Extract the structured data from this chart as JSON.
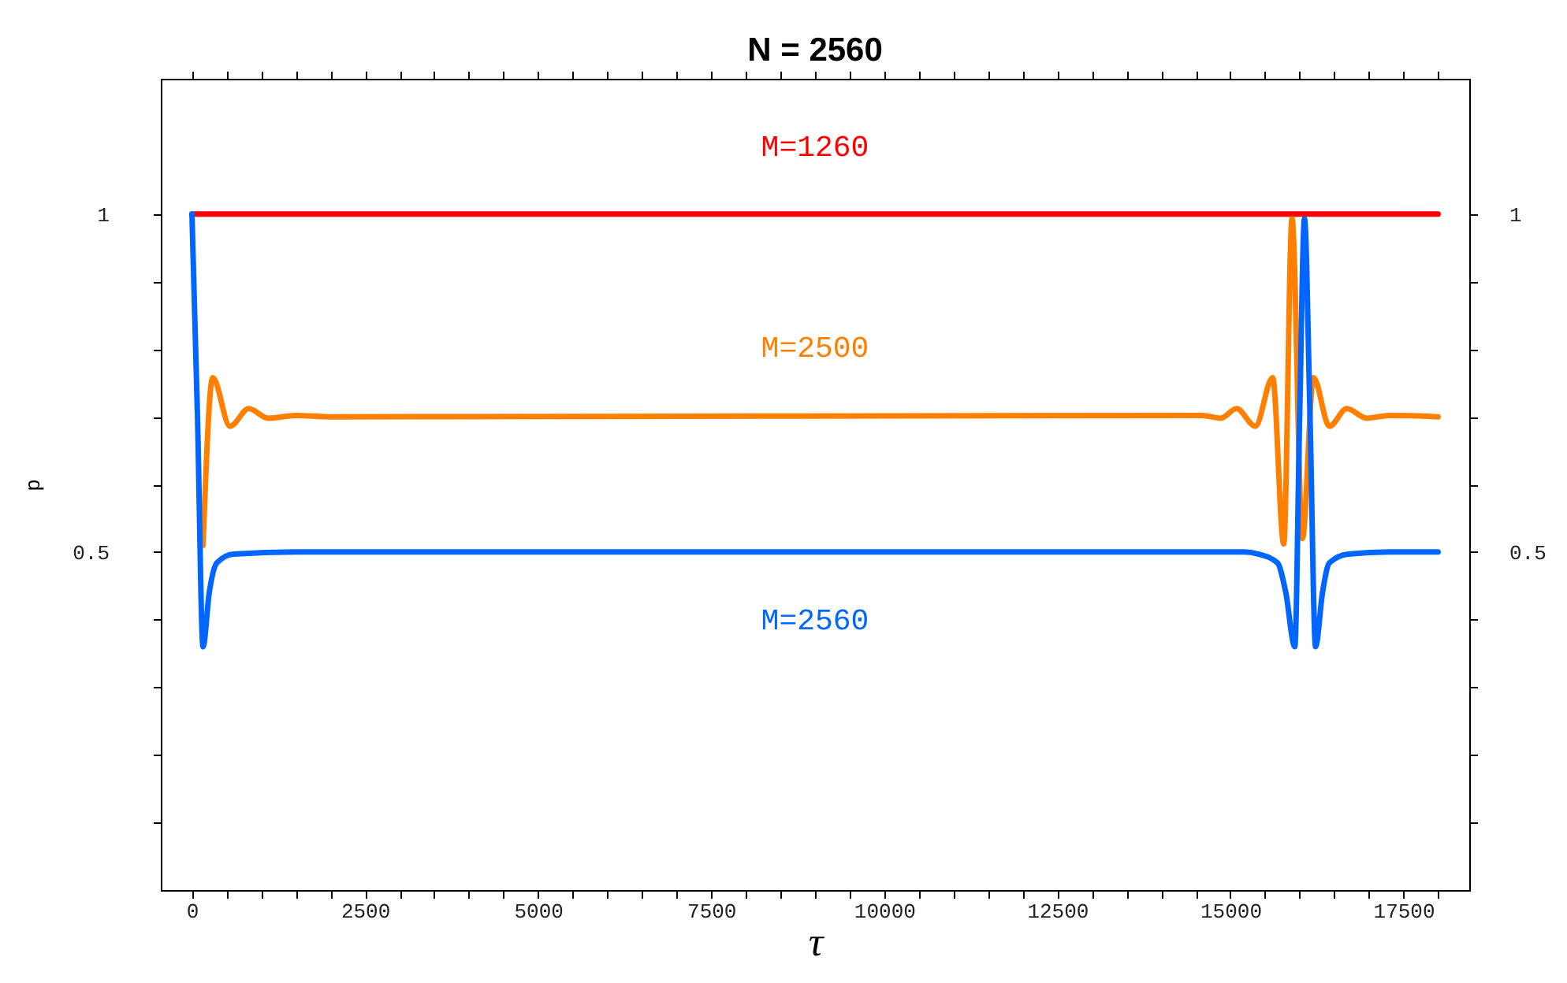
{
  "chart_data": {
    "type": "line",
    "title": "N = 2560",
    "xlabel": "τ",
    "ylabel": "p",
    "xlim": [
      -450,
      18450
    ],
    "xticks": [
      0,
      {
        "value": 500,
        "label": null
      },
      {
        "value": 1000,
        "label": null
      },
      {
        "value": 1500,
        "label": null
      },
      {
        "value": 2000,
        "label": null
      },
      2500,
      {
        "value": 3000,
        "label": null
      },
      {
        "value": 3500,
        "label": null
      },
      {
        "value": 4000,
        "label": null
      },
      {
        "value": 4500,
        "label": null
      },
      5000,
      {
        "value": 5500,
        "label": null
      },
      {
        "value": 6000,
        "label": null
      },
      {
        "value": 6500,
        "label": null
      },
      {
        "value": 7000,
        "label": null
      },
      7500,
      {
        "value": 8000,
        "label": null
      },
      {
        "value": 8500,
        "label": null
      },
      {
        "value": 9000,
        "label": null
      },
      {
        "value": 9500,
        "label": null
      },
      10000,
      {
        "value": 10500,
        "label": null
      },
      {
        "value": 11000,
        "label": null
      },
      {
        "value": 11500,
        "label": null
      },
      {
        "value": 12000,
        "label": null
      },
      12500,
      {
        "value": 13000,
        "label": null
      },
      {
        "value": 13500,
        "label": null
      },
      {
        "value": 14000,
        "label": null
      },
      {
        "value": 14500,
        "label": null
      },
      15000,
      {
        "value": 15500,
        "label": null
      },
      {
        "value": 16000,
        "label": null
      },
      {
        "value": 16500,
        "label": null
      },
      {
        "value": 17000,
        "label": null
      },
      17500,
      {
        "value": 18000,
        "label": null
      }
    ],
    "ylim": [
      0,
      1.2
    ],
    "yticks": [
      {
        "value": 0.1,
        "label": null
      },
      {
        "value": 0.2,
        "label": null
      },
      {
        "value": 0.3,
        "label": null
      },
      {
        "value": 0.4,
        "label": null
      },
      0.5,
      {
        "value": 0.6,
        "label": null
      },
      {
        "value": 0.7,
        "label": null
      },
      {
        "value": 0.8,
        "label": null
      },
      {
        "value": 0.9,
        "label": null
      },
      1
    ],
    "y2lim": [
      0,
      1.2
    ],
    "y2ticks": [
      {
        "value": 0.1,
        "label": null
      },
      {
        "value": 0.2,
        "label": null
      },
      {
        "value": 0.3,
        "label": null
      },
      {
        "value": 0.4,
        "label": null
      },
      0.5,
      {
        "value": 0.6,
        "label": null
      },
      {
        "value": 0.7,
        "label": null
      },
      {
        "value": 0.8,
        "label": null
      },
      {
        "value": 0.9,
        "label": null
      },
      1
    ],
    "grid": false,
    "marker": "none",
    "line_style": "solid",
    "series": [
      {
        "name": "M=1260",
        "color": "#ff0000",
        "x": [
          0,
          18000
        ],
        "values": [
          1,
          1
        ]
      },
      {
        "name": "M=2500",
        "color": "#ff8000",
        "x": [
          160,
          300,
          550,
          820,
          1100,
          1500,
          2000,
          14590,
          14860,
          15090,
          15360,
          15610,
          15770,
          15890,
          16040,
          16200,
          16430,
          16680,
          16970,
          17300,
          18000
        ],
        "values": [
          0.51,
          0.758,
          0.686,
          0.712,
          0.698,
          0.702,
          0.7,
          0.702,
          0.698,
          0.712,
          0.686,
          0.758,
          0.512,
          0.993,
          0.52,
          0.758,
          0.686,
          0.712,
          0.698,
          0.702,
          0.7
        ]
      },
      {
        "name": "M=2560",
        "color": "#0066ff",
        "x": [
          0,
          80,
          160,
          250,
          360,
          600,
          1500,
          15200,
          15400,
          15680,
          15800,
          15930,
          16000,
          16070,
          16150,
          16230,
          16330,
          16430,
          16700,
          17300,
          18000
        ],
        "values": [
          1,
          0.7,
          0.36,
          0.44,
          0.484,
          0.497,
          0.5,
          0.5,
          0.497,
          0.484,
          0.44,
          0.36,
          0.7,
          0.993,
          0.7,
          0.36,
          0.44,
          0.484,
          0.497,
          0.5,
          0.5
        ]
      }
    ]
  }
}
